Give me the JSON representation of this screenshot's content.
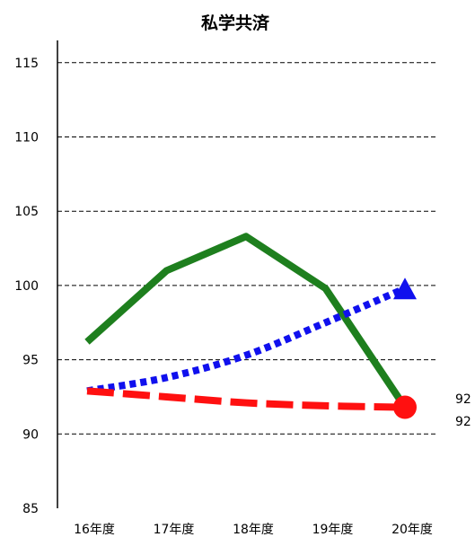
{
  "chart_data": {
    "type": "line",
    "title": "私学共済",
    "categories": [
      "16年度",
      "17年度",
      "18年度",
      "19年度",
      "20年度"
    ],
    "y_ticks": [
      "115",
      "110",
      "105",
      "100",
      "95",
      "90",
      "85"
    ],
    "ylim": [
      85,
      116.5
    ],
    "grid": true,
    "series": [
      {
        "style": "solid",
        "color": "#1e7f1e",
        "values": [
          96.2,
          101.0,
          103.3,
          99.8,
          91.8
        ]
      },
      {
        "style": "dotted",
        "color": "#1010ee",
        "marker": "triangle",
        "values": [
          92.9,
          93.8,
          95.3,
          97.5,
          99.8
        ]
      },
      {
        "style": "dashed",
        "color": "#ff1010",
        "marker": "circle",
        "values": [
          92.9,
          92.5,
          92.1,
          91.9,
          91.8
        ]
      }
    ],
    "annotations": [
      "92",
      "92"
    ]
  }
}
